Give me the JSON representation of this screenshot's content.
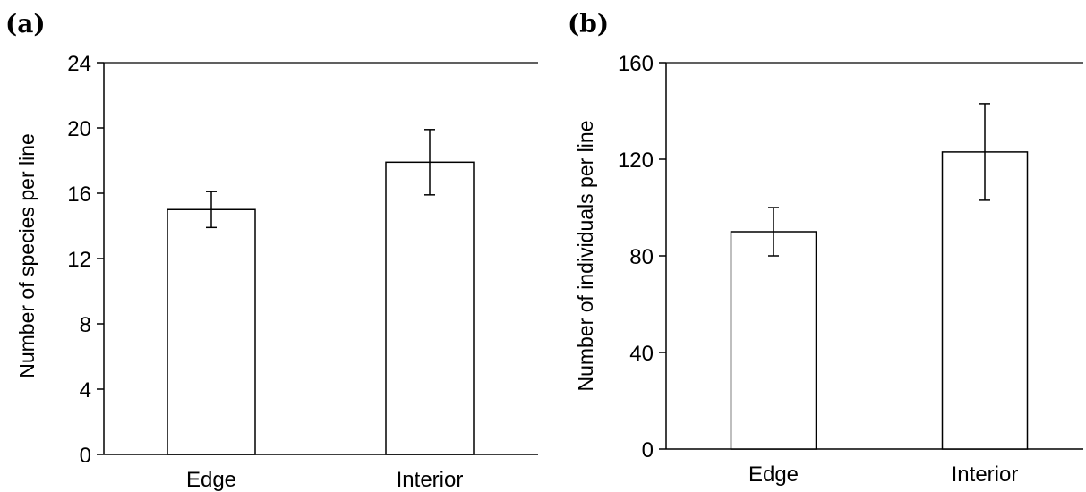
{
  "chart_data": [
    {
      "type": "bar",
      "panel_label": "(a)",
      "categories": [
        "Edge",
        "Interior"
      ],
      "values": [
        15,
        17.9
      ],
      "error": [
        1.1,
        2.0
      ],
      "ylabel": "Number of species per line",
      "xlabel": "",
      "ylim": [
        0,
        24
      ],
      "yticks": [
        "0",
        "4",
        "8",
        "12",
        "16",
        "20",
        "24"
      ],
      "grid": false,
      "bar_fill": "#ffffff",
      "bar_stroke": "#000000"
    },
    {
      "type": "bar",
      "panel_label": "(b)",
      "categories": [
        "Edge",
        "Interior"
      ],
      "values": [
        90,
        123
      ],
      "error": [
        10,
        20
      ],
      "ylabel": "Number of individuals per line",
      "xlabel": "",
      "ylim": [
        0,
        160
      ],
      "yticks": [
        "0",
        "40",
        "80",
        "120",
        "160"
      ],
      "grid": false,
      "bar_fill": "#ffffff",
      "bar_stroke": "#000000"
    }
  ]
}
